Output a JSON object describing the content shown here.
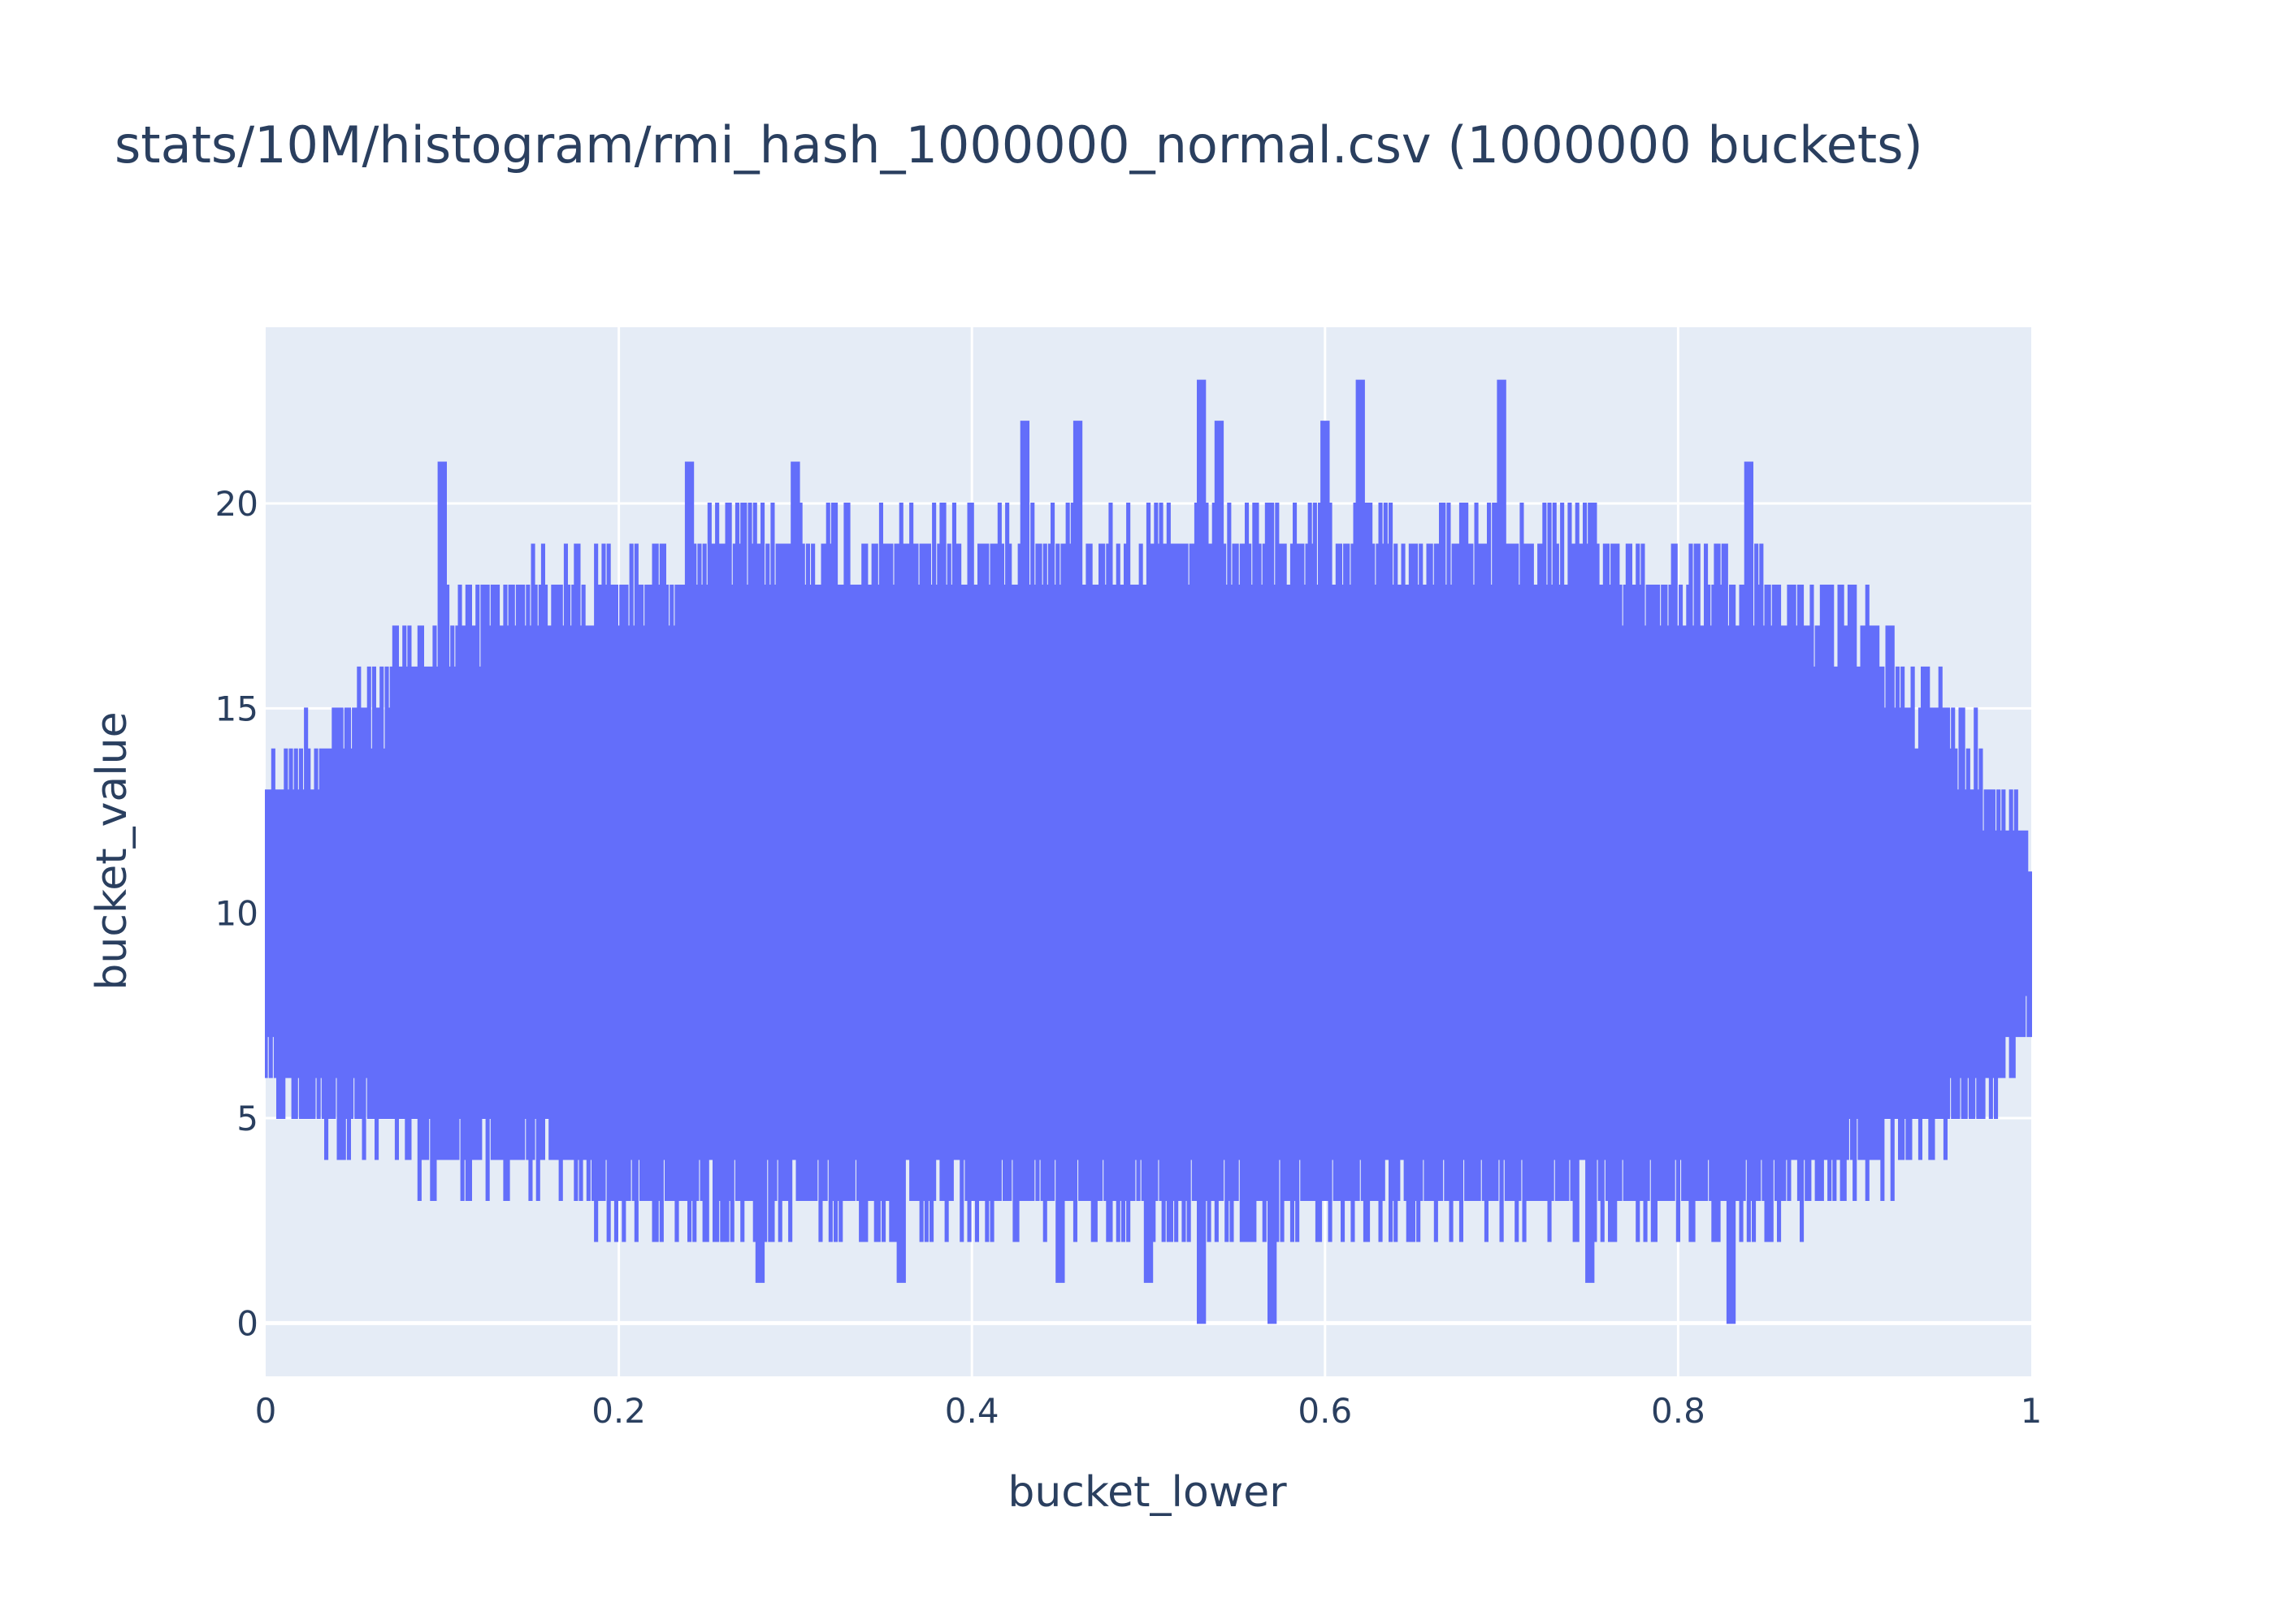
{
  "chart_data": {
    "type": "line",
    "title": "stats/10M/histogram/rmi_hash_1000000_normal.csv (1000000 buckets)",
    "xlabel": "bucket_lower",
    "ylabel": "bucket_value",
    "xlim": [
      0,
      1
    ],
    "ylim": [
      -1.3,
      24.3
    ],
    "x_ticks": [
      0,
      0.2,
      0.4,
      0.6,
      0.8,
      1
    ],
    "x_tick_labels": [
      "0",
      "0.2",
      "0.4",
      "0.6",
      "0.8",
      "1"
    ],
    "y_ticks": [
      0,
      5,
      10,
      15,
      20
    ],
    "y_tick_labels": [
      "0",
      "5",
      "10",
      "15",
      "20"
    ],
    "grid": true,
    "legend": false,
    "colors": {
      "series": "#636efa",
      "plot_bg": "#e5ecf6",
      "grid": "#ffffff",
      "text": "#2a3f5f"
    },
    "series": [
      {
        "x": [
          0,
          0.05,
          0.1,
          0.15,
          0.2,
          0.25,
          0.3,
          0.35,
          0.4,
          0.45,
          0.5,
          0.55,
          0.6,
          0.65,
          0.7,
          0.75,
          0.8,
          0.85,
          0.9,
          0.95,
          1
        ],
        "upper": [
          14,
          16,
          18,
          19,
          19,
          20,
          20,
          20,
          20,
          20,
          20,
          20,
          20,
          20,
          20,
          20,
          19,
          19,
          18,
          16,
          13
        ],
        "lower": [
          5,
          4,
          3,
          3,
          2,
          2,
          2,
          2,
          2,
          2,
          2,
          2,
          2,
          2,
          2,
          2,
          2,
          2,
          3,
          4,
          6
        ],
        "peaks": [
          {
            "x": 0.1,
            "y": 21
          },
          {
            "x": 0.24,
            "y": 21
          },
          {
            "x": 0.3,
            "y": 21
          },
          {
            "x": 0.43,
            "y": 22
          },
          {
            "x": 0.46,
            "y": 22
          },
          {
            "x": 0.53,
            "y": 23
          },
          {
            "x": 0.54,
            "y": 22
          },
          {
            "x": 0.6,
            "y": 22
          },
          {
            "x": 0.62,
            "y": 23
          },
          {
            "x": 0.7,
            "y": 23
          },
          {
            "x": 0.84,
            "y": 21
          }
        ],
        "dips": [
          {
            "x": 0.28,
            "y": 1
          },
          {
            "x": 0.36,
            "y": 1
          },
          {
            "x": 0.45,
            "y": 1
          },
          {
            "x": 0.5,
            "y": 1
          },
          {
            "x": 0.53,
            "y": 0
          },
          {
            "x": 0.57,
            "y": 0
          },
          {
            "x": 0.75,
            "y": 1
          },
          {
            "x": 0.83,
            "y": 0
          }
        ]
      }
    ]
  }
}
